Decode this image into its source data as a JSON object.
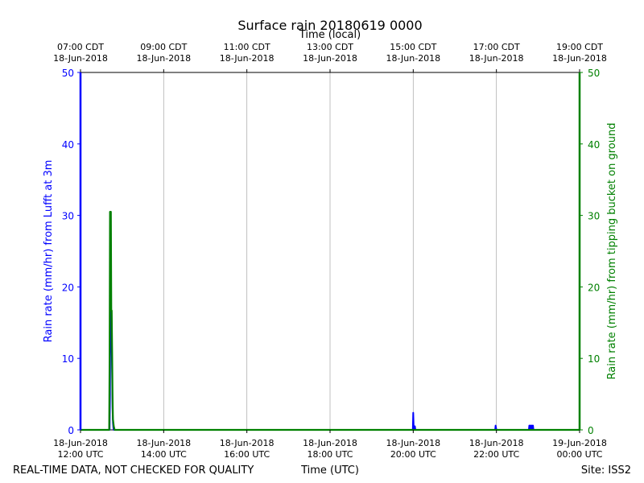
{
  "chart_data": {
    "type": "line",
    "title": "Surface rain 20180619 0000",
    "top_axis_label": "Time (local)",
    "xlabel": "Time (UTC)",
    "ylabel_left": "Rain rate (mm/hr) from Lufft at 3m",
    "ylabel_right": "Rain rate (mm/hr) from tipping bucket on ground",
    "x_range": [
      "2018-06-18 12:00 UTC",
      "2018-06-19 00:00 UTC"
    ],
    "ylim_left": [
      0,
      50
    ],
    "ylim_right": [
      0,
      50
    ],
    "grid": true,
    "colors": {
      "left": "#0000ff",
      "right": "#008000"
    },
    "yticks": [
      "0",
      "10",
      "20",
      "30",
      "40",
      "50"
    ],
    "bottom_ticks": [
      {
        "hour": 0,
        "line1": "18-Jun-2018",
        "line2": "12:00 UTC"
      },
      {
        "hour": 2,
        "line1": "18-Jun-2018",
        "line2": "14:00 UTC"
      },
      {
        "hour": 4,
        "line1": "18-Jun-2018",
        "line2": "16:00 UTC"
      },
      {
        "hour": 6,
        "line1": "18-Jun-2018",
        "line2": "18:00 UTC"
      },
      {
        "hour": 8,
        "line1": "18-Jun-2018",
        "line2": "20:00 UTC"
      },
      {
        "hour": 10,
        "line1": "18-Jun-2018",
        "line2": "22:00 UTC"
      },
      {
        "hour": 12,
        "line1": "19-Jun-2018",
        "line2": "00:00 UTC"
      }
    ],
    "top_ticks": [
      {
        "hour": 0,
        "line1": "07:00 CDT",
        "line2": "18-Jun-2018"
      },
      {
        "hour": 2,
        "line1": "09:00 CDT",
        "line2": "18-Jun-2018"
      },
      {
        "hour": 4,
        "line1": "11:00 CDT",
        "line2": "18-Jun-2018"
      },
      {
        "hour": 6,
        "line1": "13:00 CDT",
        "line2": "18-Jun-2018"
      },
      {
        "hour": 8,
        "line1": "15:00 CDT",
        "line2": "18-Jun-2018"
      },
      {
        "hour": 10,
        "line1": "17:00 CDT",
        "line2": "18-Jun-2018"
      },
      {
        "hour": 12,
        "line1": "19:00 CDT",
        "line2": "18-Jun-2018"
      }
    ],
    "series": [
      {
        "axis": "left",
        "x_hours_utc": [
          0,
          0.7,
          0.71,
          0.72,
          0.73,
          0.74,
          0.75,
          0.76,
          0.77,
          0.78,
          0.79,
          0.8,
          7.99,
          8.0,
          8.01,
          8.02,
          8.03,
          8.04,
          8.05,
          8.06,
          9.97,
          9.98,
          9.99,
          10.0,
          10.78,
          10.79,
          10.8,
          10.81,
          10.82,
          10.83,
          10.84,
          10.85,
          10.86,
          10.87,
          10.88,
          10.89,
          10.9,
          12
        ],
        "values": [
          0,
          0,
          5,
          20,
          17,
          15,
          12,
          8,
          3,
          1,
          0.3,
          0,
          0,
          2.4,
          0.5,
          0.1,
          0.5,
          0.5,
          0.1,
          0,
          0,
          0.6,
          0.3,
          0,
          0,
          0.6,
          0,
          0.6,
          0,
          0.6,
          0,
          0.6,
          0,
          0.6,
          0.6,
          0,
          0,
          0
        ]
      },
      {
        "axis": "right",
        "x_hours_utc": [
          0,
          0.69,
          0.7,
          0.71,
          0.72,
          0.73,
          0.74,
          0.75,
          0.76,
          0.77,
          0.78,
          0.8,
          0.82,
          12
        ],
        "values": [
          0,
          0,
          10,
          30.5,
          30.5,
          30.5,
          16.7,
          16.7,
          11,
          5,
          1.5,
          0.5,
          0,
          0
        ]
      }
    ]
  },
  "footer": {
    "left_note": "REAL-TIME DATA, NOT CHECKED FOR QUALITY",
    "right_note": "Site: ISS2"
  }
}
